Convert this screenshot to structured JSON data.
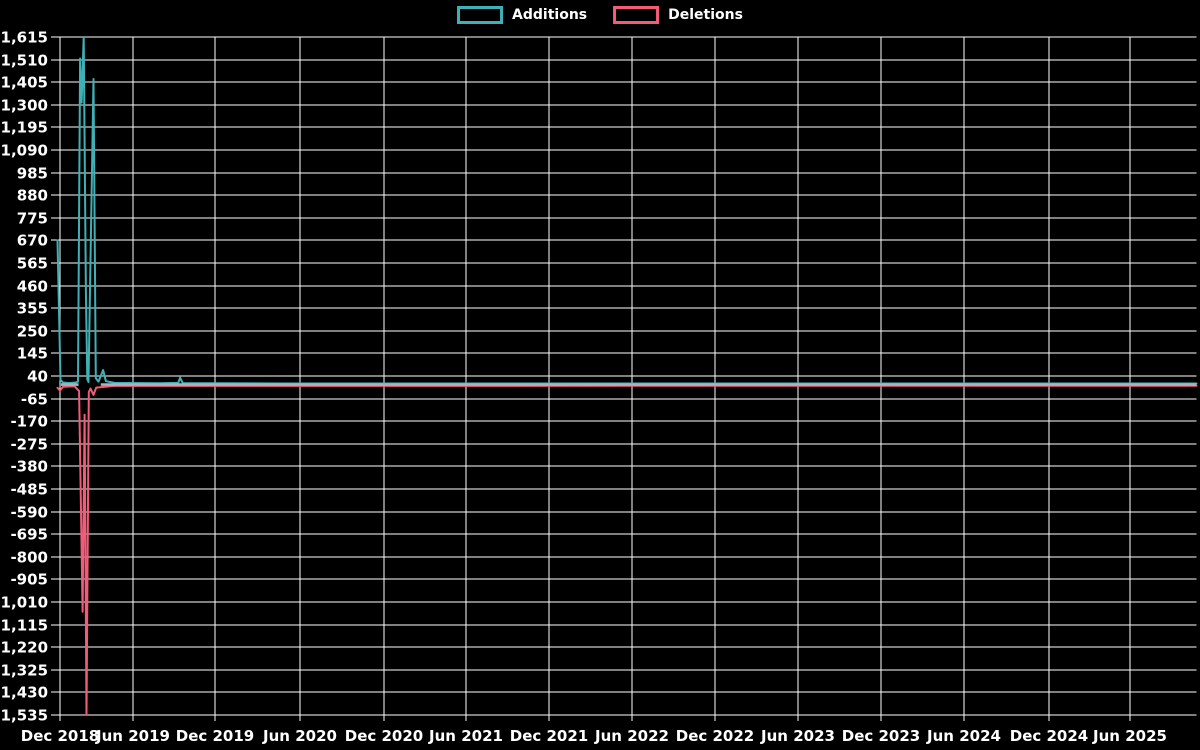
{
  "chart_data": {
    "type": "line",
    "title": "",
    "legend_position": "top",
    "background_color": "#000000",
    "grid_color": "#ffffff",
    "text_color": "#ffffff",
    "overlap_line_color": "#a6b6be",
    "legend": [
      {
        "label": "Additions",
        "color": "#3fb1b6"
      },
      {
        "label": "Deletions",
        "color": "#f25c78"
      }
    ],
    "y_axis": {
      "min": -1535,
      "max": 1615,
      "step": 105,
      "tick_values": [
        1615,
        1510,
        1405,
        1300,
        1195,
        1090,
        985,
        880,
        775,
        670,
        565,
        460,
        355,
        250,
        145,
        40,
        -65,
        -170,
        -275,
        -380,
        -485,
        -590,
        -695,
        -800,
        -905,
        -1010,
        -1115,
        -1220,
        -1325,
        -1430,
        -1535
      ]
    },
    "x_axis": {
      "ticks": [
        {
          "label": "Dec 2018",
          "pos": 0.0022
        },
        {
          "label": "Jun 2019",
          "pos": 0.0659
        },
        {
          "label": "Dec 2019",
          "pos": 0.1383
        },
        {
          "label": "Jun 2020",
          "pos": 0.2129
        },
        {
          "label": "Dec 2020",
          "pos": 0.2866
        },
        {
          "label": "Jun 2021",
          "pos": 0.3587
        },
        {
          "label": "Dec 2021",
          "pos": 0.4315
        },
        {
          "label": "Jun 2022",
          "pos": 0.5044
        },
        {
          "label": "Dec 2022",
          "pos": 0.5773
        },
        {
          "label": "Jun 2023",
          "pos": 0.6502
        },
        {
          "label": "Dec 2023",
          "pos": 0.723
        },
        {
          "label": "Jun 2024",
          "pos": 0.7963
        },
        {
          "label": "Dec 2024",
          "pos": 0.8705
        },
        {
          "label": "Jun 2025",
          "pos": 0.9416
        }
      ]
    },
    "series": [
      {
        "name": "Additions",
        "color": "#3fb1b6",
        "points": [
          [
            0.0,
            670
          ],
          [
            0.0026,
            22
          ],
          [
            0.0048,
            10
          ],
          [
            0.01,
            7
          ],
          [
            0.016,
            10
          ],
          [
            0.018,
            14
          ],
          [
            0.0198,
            1515
          ],
          [
            0.0212,
            1310
          ],
          [
            0.023,
            1615
          ],
          [
            0.0249,
            430
          ],
          [
            0.0262,
            25
          ],
          [
            0.0272,
            12
          ],
          [
            0.0316,
            1420
          ],
          [
            0.0336,
            30
          ],
          [
            0.036,
            14
          ],
          [
            0.04,
            68
          ],
          [
            0.0425,
            16
          ],
          [
            0.05,
            8
          ],
          [
            0.09,
            6
          ],
          [
            0.106,
            8
          ],
          [
            0.1076,
            32
          ],
          [
            0.11,
            7
          ],
          [
            0.2,
            5
          ],
          [
            1.0,
            5
          ]
        ]
      },
      {
        "name": "Deletions",
        "color": "#f25c78",
        "points": [
          [
            0.0,
            -15
          ],
          [
            0.0022,
            -28
          ],
          [
            0.0048,
            -10
          ],
          [
            0.015,
            -8
          ],
          [
            0.019,
            -30
          ],
          [
            0.022,
            -1055
          ],
          [
            0.0238,
            -140
          ],
          [
            0.0255,
            -1535
          ],
          [
            0.0275,
            -35
          ],
          [
            0.029,
            -18
          ],
          [
            0.0316,
            -48
          ],
          [
            0.034,
            -14
          ],
          [
            0.05,
            -6
          ],
          [
            1.0,
            -5
          ]
        ]
      }
    ],
    "flat_overlap_segments": [
      {
        "from": 0.003,
        "to": 0.0185,
        "value": 0
      },
      {
        "from": 0.038,
        "to": 1.0,
        "value": 0
      }
    ]
  }
}
